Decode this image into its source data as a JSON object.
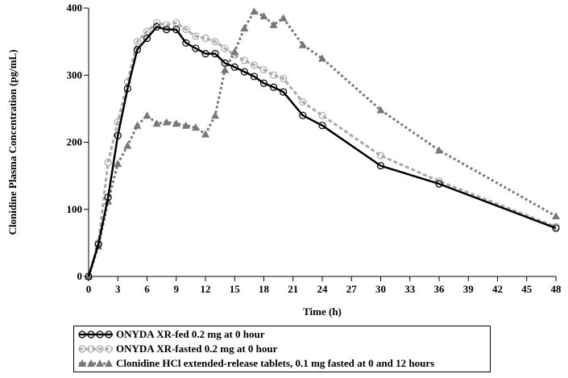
{
  "chart_data": {
    "type": "line",
    "xlabel": "Time (h)",
    "ylabel": "Clonidine Plasma Concentration (pg/mL)",
    "xlim": [
      0,
      48
    ],
    "ylim": [
      0,
      400
    ],
    "xticks": [
      0,
      3,
      6,
      9,
      12,
      15,
      18,
      21,
      24,
      27,
      30,
      33,
      36,
      39,
      42,
      45,
      48
    ],
    "yticks": [
      0,
      100,
      200,
      300,
      400
    ],
    "grid": false,
    "legend_position": "bottom",
    "series": [
      {
        "name": "ONYDA XR-fed 0.2 mg at 0 hour",
        "color": "#000000",
        "marker": "open-circle",
        "line_style": "solid",
        "x": [
          0,
          1,
          2,
          3,
          4,
          5,
          6,
          7,
          8,
          9,
          10,
          11,
          12,
          13,
          14,
          15,
          16,
          17,
          18,
          19,
          20,
          22,
          24,
          30,
          36,
          48
        ],
        "y": [
          0,
          48,
          118,
          210,
          280,
          338,
          355,
          372,
          368,
          368,
          348,
          340,
          332,
          332,
          318,
          312,
          305,
          298,
          288,
          282,
          275,
          240,
          225,
          165,
          138,
          72
        ]
      },
      {
        "name": "ONYDA XR-fasted 0.2 mg at 0 hour",
        "color": "#aaaaaa",
        "marker": "open-circle",
        "line_style": "dashed",
        "x": [
          0,
          1,
          2,
          3,
          4,
          5,
          6,
          7,
          8,
          9,
          10,
          11,
          12,
          13,
          14,
          15,
          16,
          17,
          18,
          19,
          20,
          22,
          24,
          30,
          36,
          48
        ],
        "y": [
          0,
          50,
          170,
          230,
          290,
          350,
          365,
          378,
          375,
          378,
          368,
          358,
          355,
          350,
          340,
          330,
          322,
          315,
          308,
          300,
          295,
          260,
          240,
          180,
          142,
          74
        ]
      },
      {
        "name": "Clonidine HCl extended-release tablets, 0.1 mg fasted at 0 and 12 hours",
        "color": "#777777",
        "marker": "filled-triangle",
        "line_style": "dotted",
        "x": [
          0,
          1,
          2,
          3,
          4,
          5,
          6,
          7,
          8,
          9,
          10,
          11,
          12,
          13,
          14,
          15,
          16,
          17,
          18,
          19,
          20,
          22,
          24,
          30,
          36,
          48
        ],
        "y": [
          0,
          45,
          112,
          168,
          195,
          225,
          240,
          228,
          230,
          228,
          225,
          222,
          212,
          240,
          308,
          335,
          370,
          395,
          388,
          375,
          385,
          345,
          325,
          248,
          188,
          90
        ]
      }
    ]
  }
}
